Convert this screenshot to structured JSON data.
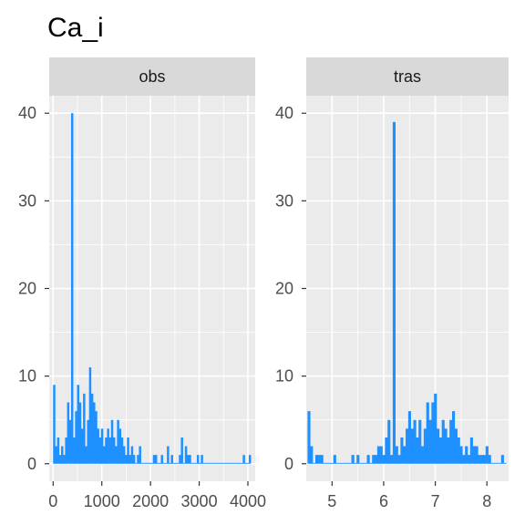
{
  "title": "Ca_i",
  "bar_color": "#1E90FF",
  "panel_bg": "#EBEBEB",
  "strip_bg": "#D9D9D9",
  "grid_color": "#FFFFFF",
  "chart_data": [
    {
      "type": "bar",
      "facet": "obs",
      "xlim": [
        -80,
        4150
      ],
      "ylim": [
        -2,
        42
      ],
      "x_ticks": [
        0,
        1000,
        2000,
        3000,
        4000
      ],
      "x_tick_labels": [
        "0",
        "1000",
        "2000",
        "3000",
        "4000"
      ],
      "y_ticks": [
        0,
        10,
        20,
        30,
        40
      ],
      "y_tick_labels": [
        "0",
        "10",
        "20",
        "30",
        "40"
      ],
      "bin_width": 41,
      "x": [
        20,
        61,
        102,
        143,
        184,
        225,
        266,
        307,
        348,
        389,
        430,
        471,
        512,
        553,
        594,
        635,
        676,
        717,
        758,
        799,
        840,
        881,
        922,
        963,
        1004,
        1045,
        1086,
        1127,
        1168,
        1209,
        1250,
        1291,
        1332,
        1373,
        1414,
        1455,
        1496,
        1537,
        1578,
        1619,
        1660,
        1701,
        1742,
        1783,
        1824,
        1865,
        1906,
        1947,
        1988,
        2029,
        2070,
        2111,
        2152,
        2193,
        2234,
        2275,
        2316,
        2357,
        2398,
        2439,
        2480,
        2521,
        2562,
        2603,
        2644,
        2685,
        2726,
        2767,
        2808,
        2849,
        2890,
        2931,
        2972,
        3013,
        3054,
        3095,
        3136,
        3177,
        3218,
        3259,
        3300,
        3341,
        3382,
        3423,
        3464,
        3505,
        3546,
        3587,
        3628,
        3669,
        3710,
        3751,
        3792,
        3833,
        3874,
        3915,
        3956,
        3997,
        4038
      ],
      "values": [
        9,
        2,
        3,
        1,
        2,
        1,
        3,
        7,
        5,
        40,
        3,
        6,
        9,
        7,
        4,
        8,
        2,
        5,
        11,
        8,
        7,
        6,
        4,
        3,
        4,
        2,
        3,
        4,
        3,
        5,
        3,
        2,
        5,
        4,
        3,
        2,
        1,
        3,
        1,
        2,
        1,
        0,
        1,
        2,
        0,
        0,
        0,
        0,
        0,
        0,
        1,
        1,
        0,
        0,
        1,
        0,
        0,
        2,
        0,
        1,
        0,
        0,
        0,
        1,
        3,
        0,
        2,
        1,
        1,
        0,
        0,
        0,
        1,
        0,
        1,
        0,
        0,
        0,
        0,
        0,
        0,
        0,
        0,
        0,
        0,
        0,
        0,
        0,
        0,
        0,
        0,
        0,
        0,
        0,
        0,
        1,
        0,
        0,
        1
      ]
    },
    {
      "type": "bar",
      "facet": "tras",
      "xlim": [
        4.5,
        8.42
      ],
      "ylim": [
        -2,
        42
      ],
      "x_ticks": [
        5,
        6,
        7,
        8
      ],
      "x_tick_labels": [
        "5",
        "6",
        "7",
        "8"
      ],
      "y_ticks": [
        0,
        10,
        20,
        30,
        40
      ],
      "y_tick_labels": [
        "0",
        "10",
        "20",
        "30",
        "40"
      ],
      "bin_width": 0.05,
      "x": [
        4.55,
        4.6,
        4.65,
        4.7,
        4.75,
        4.8,
        4.85,
        4.9,
        4.95,
        5.0,
        5.05,
        5.1,
        5.15,
        5.2,
        5.25,
        5.3,
        5.35,
        5.4,
        5.45,
        5.5,
        5.55,
        5.6,
        5.65,
        5.7,
        5.75,
        5.8,
        5.85,
        5.9,
        5.95,
        6.0,
        6.05,
        6.1,
        6.15,
        6.2,
        6.25,
        6.3,
        6.35,
        6.4,
        6.45,
        6.5,
        6.55,
        6.6,
        6.65,
        6.7,
        6.75,
        6.8,
        6.85,
        6.9,
        6.95,
        7.0,
        7.05,
        7.1,
        7.15,
        7.2,
        7.25,
        7.3,
        7.35,
        7.4,
        7.45,
        7.5,
        7.55,
        7.6,
        7.65,
        7.7,
        7.75,
        7.8,
        7.85,
        7.9,
        7.95,
        8.0,
        8.05,
        8.1,
        8.15,
        8.2,
        8.25,
        8.3,
        8.35
      ],
      "values": [
        6,
        2,
        0,
        1,
        1,
        1,
        0,
        0,
        0,
        0,
        1,
        0,
        0,
        0,
        0,
        0,
        0,
        1,
        0,
        1,
        0,
        0,
        0,
        1,
        0,
        1,
        1,
        2,
        2,
        1,
        3,
        5,
        1,
        39,
        2,
        1,
        3,
        2,
        4,
        6,
        4,
        5,
        3,
        5,
        2,
        4,
        7,
        5,
        7,
        8,
        4,
        3,
        5,
        4,
        3,
        5,
        6,
        4,
        3,
        2,
        1,
        2,
        1,
        3,
        2,
        2,
        1,
        1,
        1,
        2,
        1,
        0,
        0,
        0,
        0,
        1,
        0
      ]
    }
  ]
}
